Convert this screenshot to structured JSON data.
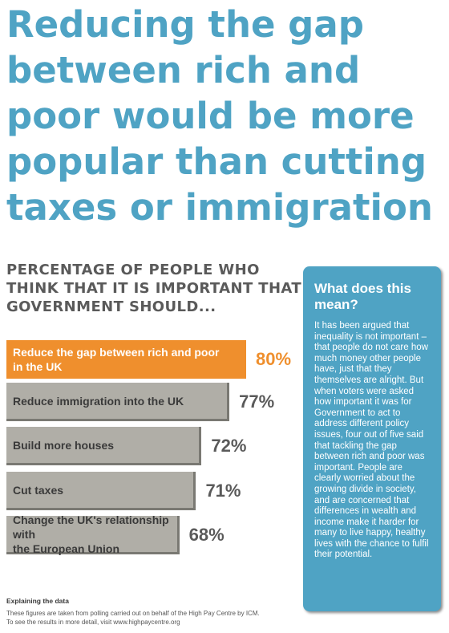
{
  "headline": {
    "lines": [
      "Reducing the gap",
      "between rich and",
      "poor would be more",
      "popular than cutting",
      "taxes or immigration"
    ]
  },
  "chart_data": {
    "type": "bar",
    "title_lines": [
      "PERCENTAGE OF PEOPLE WHO",
      "THINK THAT IT IS IMPORTANT THAT",
      "GOVERNMENT SHOULD..."
    ],
    "unit": "%",
    "categories": [
      [
        "Reduce the gap between rich and poor",
        "in the UK"
      ],
      [
        "Reduce immigration into the UK"
      ],
      [
        "Build more houses"
      ],
      [
        "Cut taxes"
      ],
      [
        "Change the UK's relationship with",
        "the European Union"
      ]
    ],
    "values": [
      80,
      77,
      72,
      71,
      68
    ],
    "value_labels": [
      "80%",
      "77%",
      "72%",
      "71%",
      "68%"
    ],
    "highlight_index": 0
  },
  "colors": {
    "accent_blue": "#4fa3c4",
    "highlight_orange": "#ef8f2d",
    "bar_gray": "#b0aea7"
  },
  "panel": {
    "title_lines": [
      "What does this",
      "mean?"
    ],
    "body": "It has been argued that inequality is not important – that people do not care how much money other people have, just that they themselves are alright. But when voters were asked how important it was for Government to act to address different policy issues, four out of five said that tackling the gap between rich and poor was important. People are clearly worried about the growing divide in society, and are concerned that differences in wealth and income make it harder for many to live happy, healthy lives with the chance to fulfil their potential."
  },
  "footer": {
    "title": "Explaining the data",
    "lines": [
      "These figures are taken from polling carried out on behalf of the High Pay Centre by ICM.",
      "To see the results in more detail, visit www.highpaycentre.org"
    ]
  }
}
